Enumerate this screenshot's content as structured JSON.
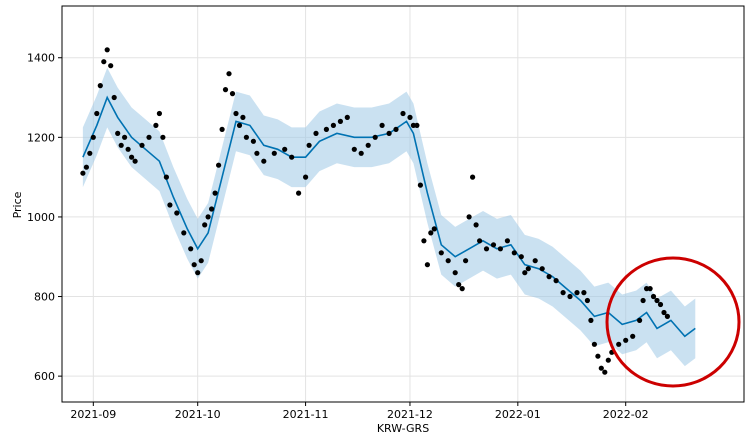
{
  "chart_data": {
    "type": "scatter",
    "title": "",
    "xlabel": "KRW-GRS",
    "ylabel": "Price",
    "x_ticks": [
      "2021-09",
      "2021-10",
      "2021-11",
      "2021-12",
      "2022-01",
      "2022-02"
    ],
    "y_ticks": [
      600,
      800,
      1000,
      1200,
      1400
    ],
    "xlim": [
      "2021-08-23",
      "2022-03-07"
    ],
    "ylim": [
      535,
      1530
    ],
    "grid": true,
    "legend": "none",
    "colors": {
      "observed": "#000000",
      "forecast": "#0072B2",
      "uncertainty": "#9ec9e6",
      "highlight_circle": "#cc0000"
    },
    "series": [
      {
        "name": "",
        "kind": "observed",
        "points": [
          [
            "2021-08-29",
            1110
          ],
          [
            "2021-08-30",
            1125
          ],
          [
            "2021-08-31",
            1160
          ],
          [
            "2021-09-01",
            1200
          ],
          [
            "2021-09-02",
            1260
          ],
          [
            "2021-09-03",
            1330
          ],
          [
            "2021-09-04",
            1390
          ],
          [
            "2021-09-05",
            1420
          ],
          [
            "2021-09-06",
            1380
          ],
          [
            "2021-09-07",
            1300
          ],
          [
            "2021-09-08",
            1210
          ],
          [
            "2021-09-09",
            1180
          ],
          [
            "2021-09-10",
            1200
          ],
          [
            "2021-09-11",
            1170
          ],
          [
            "2021-09-12",
            1150
          ],
          [
            "2021-09-13",
            1140
          ],
          [
            "2021-09-15",
            1180
          ],
          [
            "2021-09-17",
            1200
          ],
          [
            "2021-09-19",
            1230
          ],
          [
            "2021-09-20",
            1260
          ],
          [
            "2021-09-21",
            1200
          ],
          [
            "2021-09-22",
            1100
          ],
          [
            "2021-09-23",
            1030
          ],
          [
            "2021-09-25",
            1010
          ],
          [
            "2021-09-27",
            960
          ],
          [
            "2021-09-29",
            920
          ],
          [
            "2021-09-30",
            880
          ],
          [
            "2021-10-01",
            860
          ],
          [
            "2021-10-02",
            890
          ],
          [
            "2021-10-03",
            980
          ],
          [
            "2021-10-04",
            1000
          ],
          [
            "2021-10-05",
            1020
          ],
          [
            "2021-10-06",
            1060
          ],
          [
            "2021-10-07",
            1130
          ],
          [
            "2021-10-08",
            1220
          ],
          [
            "2021-10-09",
            1320
          ],
          [
            "2021-10-10",
            1360
          ],
          [
            "2021-10-11",
            1310
          ],
          [
            "2021-10-12",
            1260
          ],
          [
            "2021-10-13",
            1230
          ],
          [
            "2021-10-14",
            1250
          ],
          [
            "2021-10-15",
            1200
          ],
          [
            "2021-10-17",
            1190
          ],
          [
            "2021-10-18",
            1160
          ],
          [
            "2021-10-20",
            1140
          ],
          [
            "2021-10-23",
            1160
          ],
          [
            "2021-10-26",
            1170
          ],
          [
            "2021-10-28",
            1150
          ],
          [
            "2021-10-30",
            1060
          ],
          [
            "2021-11-01",
            1100
          ],
          [
            "2021-11-02",
            1180
          ],
          [
            "2021-11-04",
            1210
          ],
          [
            "2021-11-07",
            1220
          ],
          [
            "2021-11-09",
            1230
          ],
          [
            "2021-11-11",
            1240
          ],
          [
            "2021-11-13",
            1250
          ],
          [
            "2021-11-15",
            1170
          ],
          [
            "2021-11-17",
            1160
          ],
          [
            "2021-11-19",
            1180
          ],
          [
            "2021-11-21",
            1200
          ],
          [
            "2021-11-23",
            1230
          ],
          [
            "2021-11-25",
            1210
          ],
          [
            "2021-11-27",
            1220
          ],
          [
            "2021-11-29",
            1260
          ],
          [
            "2021-12-01",
            1250
          ],
          [
            "2021-12-02",
            1230
          ],
          [
            "2021-12-03",
            1230
          ],
          [
            "2021-12-04",
            1080
          ],
          [
            "2021-12-05",
            940
          ],
          [
            "2021-12-06",
            880
          ],
          [
            "2021-12-07",
            960
          ],
          [
            "2021-12-08",
            970
          ],
          [
            "2021-12-10",
            910
          ],
          [
            "2021-12-12",
            890
          ],
          [
            "2021-12-14",
            860
          ],
          [
            "2021-12-15",
            830
          ],
          [
            "2021-12-16",
            820
          ],
          [
            "2021-12-17",
            890
          ],
          [
            "2021-12-18",
            1000
          ],
          [
            "2021-12-19",
            1100
          ],
          [
            "2021-12-20",
            980
          ],
          [
            "2021-12-21",
            940
          ],
          [
            "2021-12-23",
            920
          ],
          [
            "2021-12-25",
            930
          ],
          [
            "2021-12-27",
            920
          ],
          [
            "2021-12-29",
            940
          ],
          [
            "2021-12-31",
            910
          ],
          [
            "2022-01-02",
            900
          ],
          [
            "2022-01-03",
            860
          ],
          [
            "2022-01-04",
            870
          ],
          [
            "2022-01-06",
            890
          ],
          [
            "2022-01-08",
            870
          ],
          [
            "2022-01-10",
            850
          ],
          [
            "2022-01-12",
            840
          ],
          [
            "2022-01-14",
            810
          ],
          [
            "2022-01-16",
            800
          ],
          [
            "2022-01-18",
            810
          ],
          [
            "2022-01-20",
            810
          ],
          [
            "2022-01-21",
            790
          ],
          [
            "2022-01-22",
            740
          ],
          [
            "2022-01-23",
            680
          ],
          [
            "2022-01-24",
            650
          ],
          [
            "2022-01-25",
            620
          ],
          [
            "2022-01-26",
            610
          ],
          [
            "2022-01-27",
            640
          ],
          [
            "2022-01-28",
            660
          ],
          [
            "2022-01-30",
            680
          ],
          [
            "2022-02-01",
            690
          ],
          [
            "2022-02-03",
            700
          ],
          [
            "2022-02-05",
            740
          ],
          [
            "2022-02-06",
            790
          ],
          [
            "2022-02-07",
            820
          ],
          [
            "2022-02-08",
            820
          ],
          [
            "2022-02-09",
            800
          ],
          [
            "2022-02-10",
            790
          ],
          [
            "2022-02-11",
            780
          ],
          [
            "2022-02-12",
            760
          ],
          [
            "2022-02-13",
            750
          ]
        ]
      },
      {
        "name": "",
        "kind": "forecast",
        "points": [
          [
            "2021-08-29",
            1150
          ],
          [
            "2021-09-02",
            1230
          ],
          [
            "2021-09-05",
            1300
          ],
          [
            "2021-09-08",
            1250
          ],
          [
            "2021-09-12",
            1200
          ],
          [
            "2021-09-16",
            1170
          ],
          [
            "2021-09-20",
            1140
          ],
          [
            "2021-09-24",
            1050
          ],
          [
            "2021-09-28",
            970
          ],
          [
            "2021-10-01",
            920
          ],
          [
            "2021-10-04",
            960
          ],
          [
            "2021-10-08",
            1100
          ],
          [
            "2021-10-12",
            1240
          ],
          [
            "2021-10-16",
            1230
          ],
          [
            "2021-10-20",
            1180
          ],
          [
            "2021-10-24",
            1170
          ],
          [
            "2021-10-28",
            1150
          ],
          [
            "2021-11-01",
            1150
          ],
          [
            "2021-11-05",
            1190
          ],
          [
            "2021-11-10",
            1210
          ],
          [
            "2021-11-15",
            1200
          ],
          [
            "2021-11-20",
            1200
          ],
          [
            "2021-11-25",
            1210
          ],
          [
            "2021-11-30",
            1240
          ],
          [
            "2021-12-02",
            1210
          ],
          [
            "2021-12-06",
            1060
          ],
          [
            "2021-12-10",
            930
          ],
          [
            "2021-12-14",
            900
          ],
          [
            "2021-12-18",
            920
          ],
          [
            "2021-12-22",
            940
          ],
          [
            "2021-12-26",
            920
          ],
          [
            "2021-12-30",
            930
          ],
          [
            "2022-01-03",
            880
          ],
          [
            "2022-01-07",
            870
          ],
          [
            "2022-01-11",
            850
          ],
          [
            "2022-01-15",
            820
          ],
          [
            "2022-01-19",
            790
          ],
          [
            "2022-01-23",
            750
          ],
          [
            "2022-01-27",
            760
          ],
          [
            "2022-01-31",
            730
          ],
          [
            "2022-02-04",
            740
          ],
          [
            "2022-02-07",
            760
          ],
          [
            "2022-02-10",
            720
          ],
          [
            "2022-02-14",
            740
          ],
          [
            "2022-02-18",
            700
          ],
          [
            "2022-02-21",
            720
          ]
        ],
        "band_halfwidth": 75
      }
    ]
  }
}
